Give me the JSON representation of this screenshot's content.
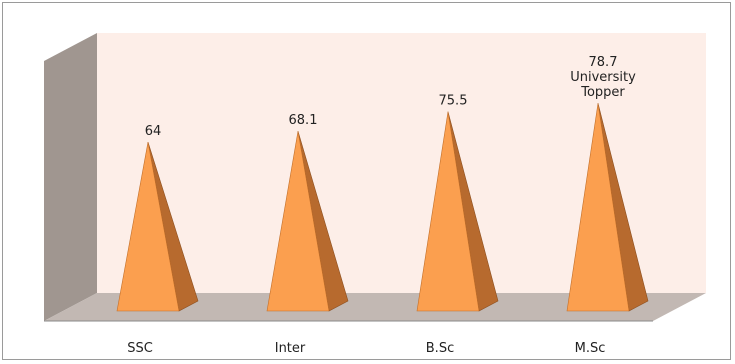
{
  "chart_data": {
    "type": "bar",
    "style": "3d-pyramid",
    "categories": [
      "SSC",
      "Inter",
      "B.Sc",
      "M.Sc"
    ],
    "values": [
      64,
      68.1,
      75.5,
      78.7
    ],
    "data_labels": [
      "64",
      "68.1",
      "75.5",
      "78.7"
    ],
    "annotations": [
      {
        "category": "M.Sc",
        "text": "University Topper"
      }
    ],
    "title": "",
    "xlabel": "",
    "ylabel": "",
    "ylim": [
      0,
      90
    ],
    "grid": false,
    "legend": "none",
    "colors": {
      "pyramid_front": "#fb9f4f",
      "pyramid_side": "#b76a2e",
      "back_wall": "#fdeee8",
      "side_wall": "#a09690",
      "floor": "#c2b8b3"
    }
  }
}
